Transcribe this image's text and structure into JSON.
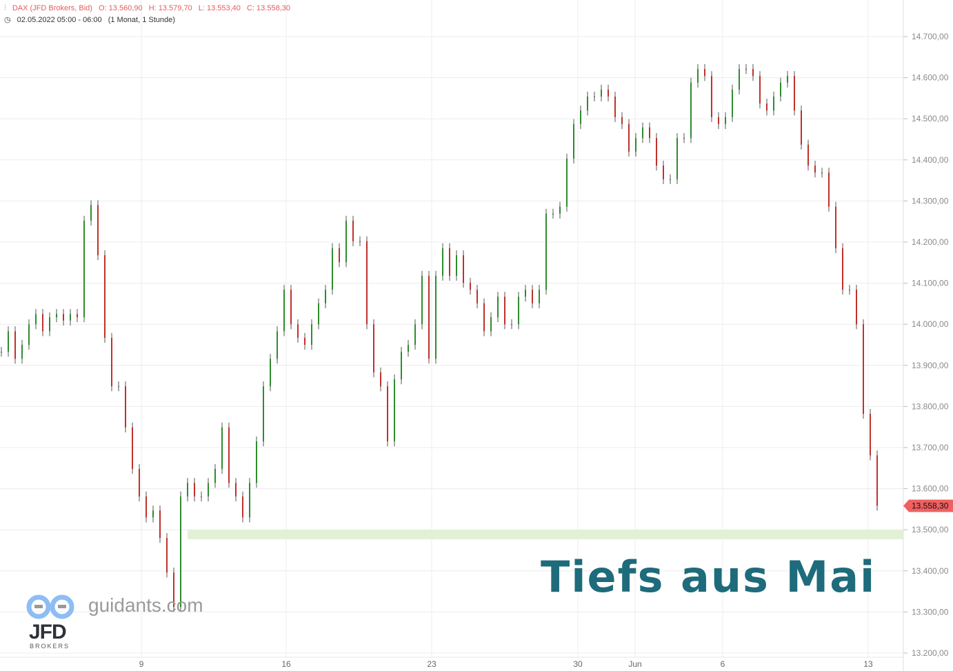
{
  "header": {
    "instrument": "DAX (JFD Brokers, Bid)",
    "open": "O: 13.560,90",
    "high": "H: 13.579,70",
    "low": "L: 13.553,40",
    "close": "C: 13.558,30",
    "datetime": "02.05.2022 05:00 - 06:00",
    "period": "(1 Monat, 1 Stunde)"
  },
  "annotation": "Tiefs aus Mai",
  "branding": {
    "site": "guidants.com",
    "broker": "JFD",
    "broker_sub": "BROKERS"
  },
  "chart_data": {
    "type": "ohlc",
    "title": "DAX (JFD Brokers, Bid)",
    "ylim": [
      13180,
      14720
    ],
    "grid": true,
    "y_ticks": [
      13200,
      13300,
      13400,
      13500,
      13600,
      13700,
      13800,
      13900,
      14000,
      14100,
      14200,
      14300,
      14400,
      14500,
      14600,
      14700
    ],
    "y_tick_labels": [
      "13.200,00",
      "13.300,00",
      "13.400,00",
      "13.500,00",
      "13.600,00",
      "13.700,00",
      "13.800,00",
      "13.900,00",
      "14.000,00",
      "14.100,00",
      "14.200,00",
      "14.300,00",
      "14.400,00",
      "14.500,00",
      "14.600,00",
      "14.700,00"
    ],
    "x_ticks": [
      {
        "label": "9",
        "index": 20.3
      },
      {
        "label": "16",
        "index": 41.3
      },
      {
        "label": "23",
        "index": 62.4
      },
      {
        "label": "30",
        "index": 83.6
      },
      {
        "label": "Jun",
        "index": 91.9
      },
      {
        "label": "6",
        "index": 104.6
      },
      {
        "label": "13",
        "index": 125.7
      }
    ],
    "closes": [
      13933,
      13983,
      13916,
      13950,
      14000,
      14025,
      13983,
      14017,
      14025,
      14009,
      14025,
      14017,
      14252,
      14290,
      14168,
      13967,
      13849,
      13849,
      13749,
      13648,
      13581,
      13530,
      13547,
      13480,
      13396,
      13312,
      13581,
      13614,
      13581,
      13581,
      13614,
      13648,
      13749,
      13614,
      13581,
      13530,
      13614,
      13715,
      13849,
      13916,
      13983,
      14084,
      14000,
      13967,
      13950,
      14000,
      14051,
      14084,
      14185,
      14151,
      14252,
      14202,
      14202,
      14000,
      13883,
      13849,
      13715,
      13866,
      13933,
      13950,
      14000,
      14118,
      13916,
      14118,
      14185,
      14118,
      14168,
      14101,
      14084,
      14051,
      13983,
      14017,
      14067,
      14000,
      14000,
      14067,
      14084,
      14051,
      14084,
      14269,
      14269,
      14286,
      14403,
      14487,
      14520,
      14554,
      14554,
      14571,
      14554,
      14504,
      14487,
      14420,
      14453,
      14479,
      14453,
      14386,
      14353,
      14353,
      14453,
      14453,
      14588,
      14621,
      14604,
      14504,
      14487,
      14504,
      14571,
      14621,
      14621,
      14604,
      14537,
      14520,
      14554,
      14588,
      14604,
      14520,
      14437,
      14386,
      14369,
      14369,
      14286,
      14185,
      14084,
      14084,
      14000,
      13782,
      13681,
      13558.3
    ],
    "last_price": 13558.3,
    "last_price_label": "13.558,30",
    "support_zone": [
      13477,
      13500
    ],
    "colors": {
      "up": "#2e8b2e",
      "down": "#c0302a",
      "neutral": "#555555",
      "last_price": "#f06060",
      "zone": "#e2f0d6",
      "annotation": "#1e6b7b"
    }
  }
}
